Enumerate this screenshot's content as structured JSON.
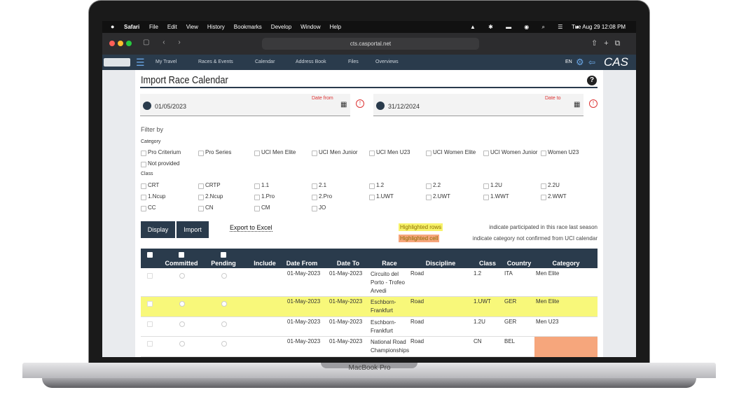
{
  "menubar": {
    "app": "Safari",
    "items": [
      "File",
      "Edit",
      "View",
      "History",
      "Bookmarks",
      "Develop",
      "Window",
      "Help"
    ],
    "clock": "Tue Aug 29  12:08 PM"
  },
  "browser": {
    "url": "cts.casportal.net"
  },
  "nav": {
    "items": [
      "My Travel",
      "Races & Events",
      "Calendar",
      "Address Book",
      "Files",
      "Overviews"
    ],
    "lang": "EN",
    "logo": "CAS"
  },
  "page": {
    "title": "Import Race Calendar",
    "date_from": {
      "label": "Date from",
      "value": "01/05/2023"
    },
    "date_to": {
      "label": "Date to",
      "value": "31/12/2024"
    },
    "filter_by": "Filter by",
    "category_label": "Category",
    "categories": [
      "Pro Criterium",
      "Pro Series",
      "UCI Men Elite",
      "UCI Men Junior",
      "UCI Men U23",
      "UCI Women Elite",
      "UCI Women Junior",
      "Women U23",
      "Not provided"
    ],
    "class_label": "Class",
    "classes": [
      "CRT",
      "CRTP",
      "1.1",
      "2.1",
      "1.2",
      "2.2",
      "1.2U",
      "2.2U",
      "1.Ncup",
      "2.Ncup",
      "1.Pro",
      "2.Pro",
      "1.UWT",
      "2.UWT",
      "1.WWT",
      "2.WWT",
      "CC",
      "CN",
      "CM",
      "JO"
    ],
    "buttons": [
      "Display",
      "Import"
    ],
    "export": "Export to Excel",
    "legend": [
      {
        "tag": "Highlighted rows",
        "text": "indicate participated in this race last season"
      },
      {
        "tag": "Highlighted cell",
        "text": "indicate category not confirmed from UCI calendar"
      }
    ]
  },
  "table": {
    "columns": [
      "Committed",
      "Pending",
      "Include",
      "Date From",
      "Date To",
      "Race",
      "Discipline",
      "Class",
      "Country",
      "Category"
    ],
    "rows": [
      {
        "date_from": "01-May-2023",
        "date_to": "01-May-2023",
        "race": "Circuito del Porto - Trofeo Arvedi",
        "discipline": "Road",
        "class": "1.2",
        "country": "ITA",
        "category": "Men Elite",
        "highlight_row": false,
        "highlight_cell": false
      },
      {
        "date_from": "01-May-2023",
        "date_to": "01-May-2023",
        "race": "Eschborn-Frankfurt",
        "discipline": "Road",
        "class": "1.UWT",
        "country": "GER",
        "category": "Men Elite",
        "highlight_row": true,
        "highlight_cell": false
      },
      {
        "date_from": "01-May-2023",
        "date_to": "01-May-2023",
        "race": "Eschborn-Frankfurt",
        "discipline": "Road",
        "class": "1.2U",
        "country": "GER",
        "category": "Men U23",
        "highlight_row": false,
        "highlight_cell": false
      },
      {
        "date_from": "01-May-2023",
        "date_to": "01-May-2023",
        "race": "National Road Championships -",
        "discipline": "Road",
        "class": "CN",
        "country": "BEL",
        "category": null,
        "highlight_row": false,
        "highlight_cell": true
      }
    ]
  },
  "device": {
    "label": "MacBook Pro"
  }
}
